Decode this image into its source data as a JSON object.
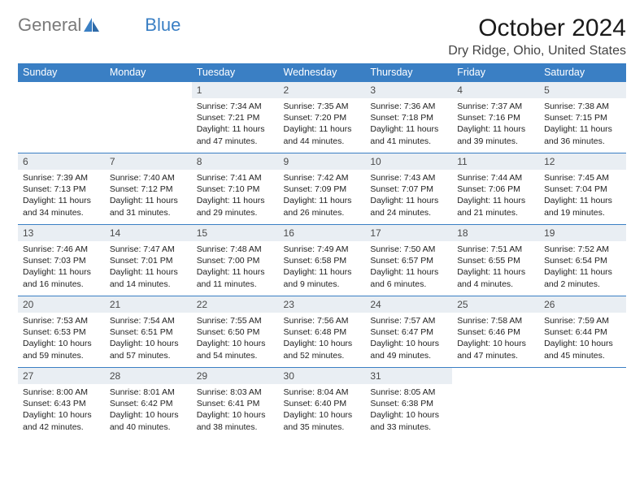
{
  "brand": {
    "part1": "General",
    "part2": "Blue"
  },
  "title": "October 2024",
  "location": "Dry Ridge, Ohio, United States",
  "colors": {
    "header_bg": "#3a7fc4",
    "header_fg": "#ffffff",
    "daynum_bg": "#e9eef3",
    "cell_border": "#3a7fc4",
    "logo_gray": "#7a7a7a",
    "logo_blue": "#3a7fc4"
  },
  "day_headers": [
    "Sunday",
    "Monday",
    "Tuesday",
    "Wednesday",
    "Thursday",
    "Friday",
    "Saturday"
  ],
  "weeks": [
    [
      null,
      null,
      {
        "n": "1",
        "sunrise": "7:34 AM",
        "sunset": "7:21 PM",
        "dl": "11 hours and 47 minutes."
      },
      {
        "n": "2",
        "sunrise": "7:35 AM",
        "sunset": "7:20 PM",
        "dl": "11 hours and 44 minutes."
      },
      {
        "n": "3",
        "sunrise": "7:36 AM",
        "sunset": "7:18 PM",
        "dl": "11 hours and 41 minutes."
      },
      {
        "n": "4",
        "sunrise": "7:37 AM",
        "sunset": "7:16 PM",
        "dl": "11 hours and 39 minutes."
      },
      {
        "n": "5",
        "sunrise": "7:38 AM",
        "sunset": "7:15 PM",
        "dl": "11 hours and 36 minutes."
      }
    ],
    [
      {
        "n": "6",
        "sunrise": "7:39 AM",
        "sunset": "7:13 PM",
        "dl": "11 hours and 34 minutes."
      },
      {
        "n": "7",
        "sunrise": "7:40 AM",
        "sunset": "7:12 PM",
        "dl": "11 hours and 31 minutes."
      },
      {
        "n": "8",
        "sunrise": "7:41 AM",
        "sunset": "7:10 PM",
        "dl": "11 hours and 29 minutes."
      },
      {
        "n": "9",
        "sunrise": "7:42 AM",
        "sunset": "7:09 PM",
        "dl": "11 hours and 26 minutes."
      },
      {
        "n": "10",
        "sunrise": "7:43 AM",
        "sunset": "7:07 PM",
        "dl": "11 hours and 24 minutes."
      },
      {
        "n": "11",
        "sunrise": "7:44 AM",
        "sunset": "7:06 PM",
        "dl": "11 hours and 21 minutes."
      },
      {
        "n": "12",
        "sunrise": "7:45 AM",
        "sunset": "7:04 PM",
        "dl": "11 hours and 19 minutes."
      }
    ],
    [
      {
        "n": "13",
        "sunrise": "7:46 AM",
        "sunset": "7:03 PM",
        "dl": "11 hours and 16 minutes."
      },
      {
        "n": "14",
        "sunrise": "7:47 AM",
        "sunset": "7:01 PM",
        "dl": "11 hours and 14 minutes."
      },
      {
        "n": "15",
        "sunrise": "7:48 AM",
        "sunset": "7:00 PM",
        "dl": "11 hours and 11 minutes."
      },
      {
        "n": "16",
        "sunrise": "7:49 AM",
        "sunset": "6:58 PM",
        "dl": "11 hours and 9 minutes."
      },
      {
        "n": "17",
        "sunrise": "7:50 AM",
        "sunset": "6:57 PM",
        "dl": "11 hours and 6 minutes."
      },
      {
        "n": "18",
        "sunrise": "7:51 AM",
        "sunset": "6:55 PM",
        "dl": "11 hours and 4 minutes."
      },
      {
        "n": "19",
        "sunrise": "7:52 AM",
        "sunset": "6:54 PM",
        "dl": "11 hours and 2 minutes."
      }
    ],
    [
      {
        "n": "20",
        "sunrise": "7:53 AM",
        "sunset": "6:53 PM",
        "dl": "10 hours and 59 minutes."
      },
      {
        "n": "21",
        "sunrise": "7:54 AM",
        "sunset": "6:51 PM",
        "dl": "10 hours and 57 minutes."
      },
      {
        "n": "22",
        "sunrise": "7:55 AM",
        "sunset": "6:50 PM",
        "dl": "10 hours and 54 minutes."
      },
      {
        "n": "23",
        "sunrise": "7:56 AM",
        "sunset": "6:48 PM",
        "dl": "10 hours and 52 minutes."
      },
      {
        "n": "24",
        "sunrise": "7:57 AM",
        "sunset": "6:47 PM",
        "dl": "10 hours and 49 minutes."
      },
      {
        "n": "25",
        "sunrise": "7:58 AM",
        "sunset": "6:46 PM",
        "dl": "10 hours and 47 minutes."
      },
      {
        "n": "26",
        "sunrise": "7:59 AM",
        "sunset": "6:44 PM",
        "dl": "10 hours and 45 minutes."
      }
    ],
    [
      {
        "n": "27",
        "sunrise": "8:00 AM",
        "sunset": "6:43 PM",
        "dl": "10 hours and 42 minutes."
      },
      {
        "n": "28",
        "sunrise": "8:01 AM",
        "sunset": "6:42 PM",
        "dl": "10 hours and 40 minutes."
      },
      {
        "n": "29",
        "sunrise": "8:03 AM",
        "sunset": "6:41 PM",
        "dl": "10 hours and 38 minutes."
      },
      {
        "n": "30",
        "sunrise": "8:04 AM",
        "sunset": "6:40 PM",
        "dl": "10 hours and 35 minutes."
      },
      {
        "n": "31",
        "sunrise": "8:05 AM",
        "sunset": "6:38 PM",
        "dl": "10 hours and 33 minutes."
      },
      null,
      null
    ]
  ]
}
